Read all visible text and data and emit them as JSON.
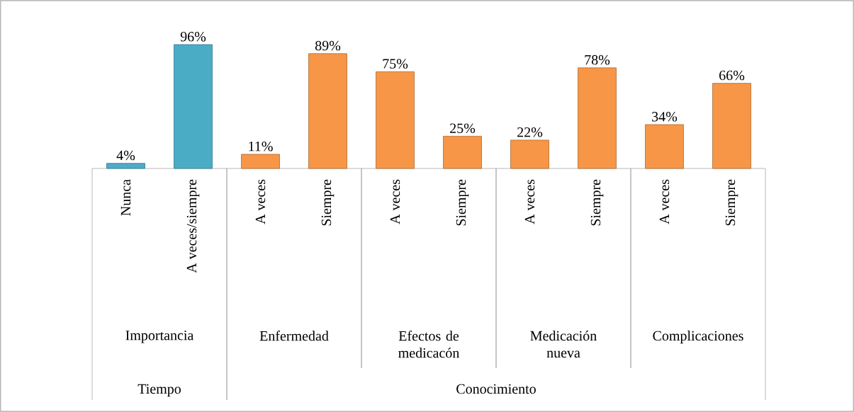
{
  "chart_data": {
    "type": "bar",
    "categories": [
      "Nunca",
      "A veces/siempre",
      "A veces",
      "Siempre",
      "A veces",
      "Siempre",
      "A veces",
      "Siempre",
      "A veces",
      "Siempre"
    ],
    "values": [
      4,
      96,
      11,
      89,
      75,
      25,
      22,
      78,
      34,
      66
    ],
    "colors": [
      "#4bacc6",
      "#4bacc6",
      "#f79646",
      "#f79646",
      "#f79646",
      "#f79646",
      "#f79646",
      "#f79646",
      "#f79646",
      "#f79646"
    ],
    "value_labels": [
      "4%",
      "96%",
      "11%",
      "89%",
      "75%",
      "25%",
      "22%",
      "78%",
      "34%",
      "66%"
    ],
    "annotations": [
      "Importancia",
      "Enfermedad",
      "Efectos de medicacón",
      "Medicación nueva",
      "Complicaciones",
      "Tiempo",
      "Conocimiento"
    ]
  }
}
